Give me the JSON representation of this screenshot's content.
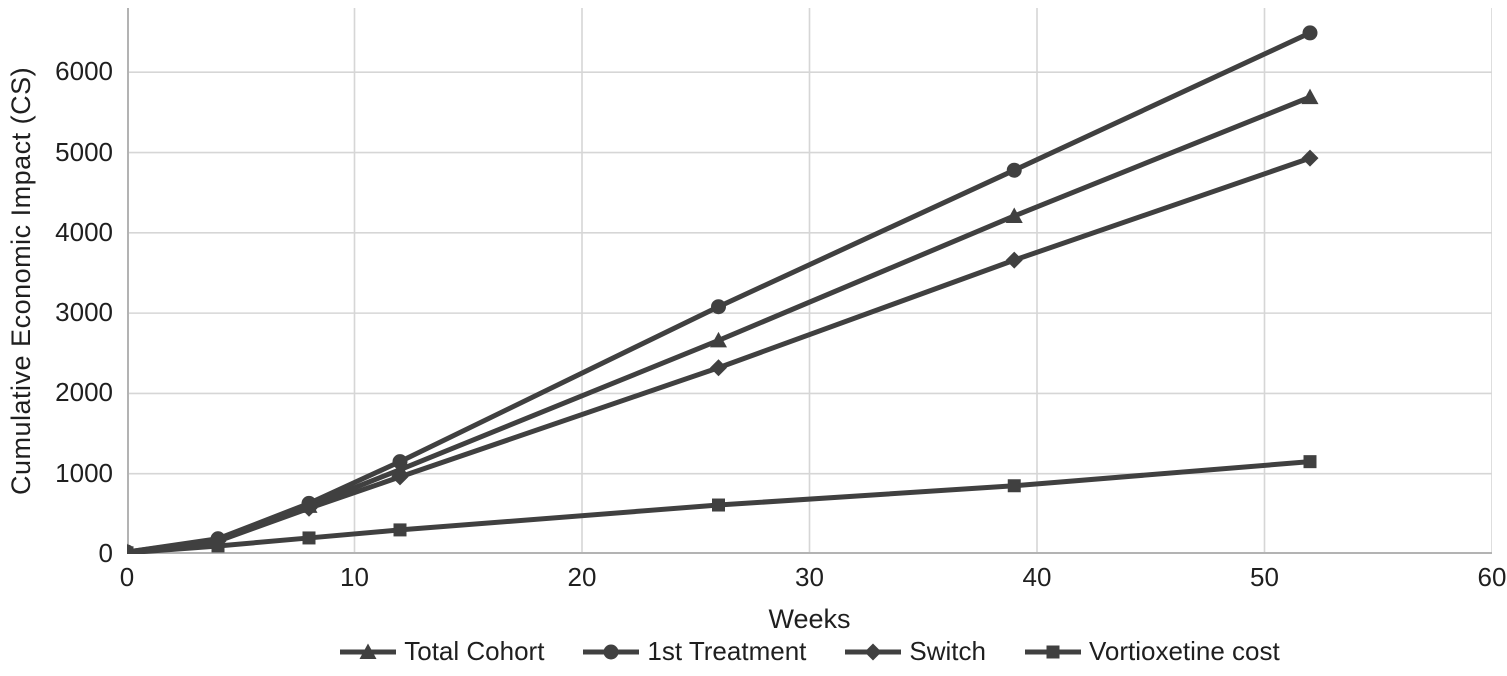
{
  "chart_data": {
    "type": "line",
    "title": "",
    "xlabel": "Weeks",
    "ylabel": "Cumulative Economic Impact (CS)",
    "x": [
      0,
      4,
      8,
      12,
      26,
      39,
      52
    ],
    "series": [
      {
        "name": "Total Cohort",
        "marker": "triangle",
        "values": [
          25,
          180,
          600,
          1050,
          2660,
          4210,
          5690
        ]
      },
      {
        "name": "1st Treatment",
        "marker": "circle",
        "values": [
          25,
          190,
          630,
          1150,
          3080,
          4780,
          6490
        ]
      },
      {
        "name": "Switch",
        "marker": "diamond",
        "values": [
          20,
          160,
          570,
          960,
          2320,
          3660,
          4930
        ]
      },
      {
        "name": "Vortioxetine cost",
        "marker": "square",
        "values": [
          15,
          100,
          200,
          300,
          610,
          850,
          1150
        ]
      }
    ],
    "xlim": [
      0,
      60
    ],
    "ylim": [
      0,
      6800
    ],
    "x_ticks": [
      0,
      10,
      20,
      30,
      40,
      50,
      60
    ],
    "y_ticks": [
      0,
      1000,
      2000,
      3000,
      4000,
      5000,
      6000
    ],
    "grid": true,
    "legend_position": "bottom",
    "colors": {
      "series": "#404040",
      "gridline": "#d6d6d6",
      "axis": "#b3b3b3",
      "text": "#1f1f1f"
    }
  }
}
